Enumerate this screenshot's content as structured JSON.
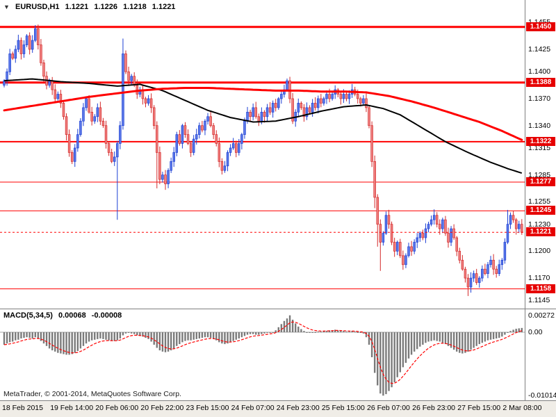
{
  "header": {
    "symbol": "EURUSD,H1",
    "open": "1.1221",
    "high": "1.1226",
    "low": "1.1218",
    "close": "1.1221"
  },
  "icons": {
    "symbol_marker": "▼"
  },
  "macd_label": {
    "name": "MACD(5,34,5)",
    "main": "0.00068",
    "signal": "-0.00008"
  },
  "footer": {
    "copyright": "MetaTrader, © 2001-2014, MetaQuotes Software Corp."
  },
  "colors": {
    "level_line": "#ff0000",
    "candle_up_border": "#1c3fd4",
    "candle_up_fill": "#5a77e8",
    "candle_down_border": "#d42a2a",
    "candle_down_fill": "#ef8080",
    "ma_black": "#000000",
    "ma_red": "#ff0000",
    "macd_bar": "#7a7a7a",
    "macd_signal": "#ff0000",
    "badge_bg": "#e60000"
  },
  "chart_data": [
    {
      "type": "candlestick",
      "title": "EURUSD,H1",
      "xlabel": "",
      "ylabel": "Price",
      "ylim": [
        1.1136,
        1.148
      ],
      "grid": false,
      "current_price": 1.1221,
      "first_open": 1.1385,
      "wick": 0.0005,
      "closes": [
        1.139,
        1.14,
        1.142,
        1.1415,
        1.1425,
        1.1435,
        1.142,
        1.143,
        1.144,
        1.1425,
        1.1435,
        1.1448,
        1.143,
        1.141,
        1.1395,
        1.1385,
        1.139,
        1.138,
        1.137,
        1.1375,
        1.1365,
        1.135,
        1.133,
        1.131,
        1.13,
        1.1315,
        1.133,
        1.1345,
        1.136,
        1.137,
        1.1355,
        1.1345,
        1.135,
        1.136,
        1.1345,
        1.134,
        1.132,
        1.131,
        1.13,
        1.1305,
        1.132,
        1.134,
        1.142,
        1.14,
        1.139,
        1.1395,
        1.1385,
        1.1375,
        1.138,
        1.137,
        1.1365,
        1.137,
        1.136,
        1.134,
        1.131,
        1.128,
        1.1285,
        1.1275,
        1.129,
        1.13,
        1.131,
        1.133,
        1.132,
        1.134,
        1.133,
        1.132,
        1.131,
        1.1325,
        1.133,
        1.134,
        1.1335,
        1.1345,
        1.135,
        1.134,
        1.133,
        1.132,
        1.13,
        1.129,
        1.1295,
        1.131,
        1.1315,
        1.132,
        1.131,
        1.132,
        1.133,
        1.1345,
        1.1355,
        1.135,
        1.136,
        1.135,
        1.1345,
        1.1355,
        1.135,
        1.136,
        1.1355,
        1.1365,
        1.136,
        1.137,
        1.1375,
        1.138,
        1.139,
        1.137,
        1.1345,
        1.1355,
        1.1365,
        1.136,
        1.135,
        1.136,
        1.1355,
        1.1365,
        1.136,
        1.137,
        1.1365,
        1.137,
        1.1375,
        1.137,
        1.1375,
        1.138,
        1.1375,
        1.137,
        1.1375,
        1.137,
        1.1375,
        1.138,
        1.1375,
        1.137,
        1.1365,
        1.137,
        1.136,
        1.134,
        1.13,
        1.126,
        1.123,
        1.121,
        1.122,
        1.124,
        1.123,
        1.121,
        1.12,
        1.121,
        1.1195,
        1.1185,
        1.1195,
        1.1205,
        1.12,
        1.121,
        1.1215,
        1.122,
        1.1215,
        1.1225,
        1.123,
        1.1235,
        1.124,
        1.123,
        1.1225,
        1.1235,
        1.122,
        1.121,
        1.1225,
        1.1215,
        1.12,
        1.119,
        1.118,
        1.117,
        1.116,
        1.117,
        1.1175,
        1.1165,
        1.117,
        1.118,
        1.1175,
        1.1185,
        1.119,
        1.118,
        1.1175,
        1.1185,
        1.119,
        1.121,
        1.123,
        1.124,
        1.1235,
        1.1225,
        1.123,
        1.1221
      ],
      "wick_overrides": {
        "11": {
          "h": 1.1452
        },
        "40": {
          "l": 1.1235
        },
        "42": {
          "h": 1.1437
        },
        "54": {
          "l": 1.127
        },
        "131": {
          "l": 1.1248
        },
        "132": {
          "l": 1.1205
        },
        "133": {
          "l": 1.1178
        },
        "164": {
          "l": 1.115
        },
        "178": {
          "h": 1.1246
        }
      },
      "y_ticks": [
        1.1455,
        1.1425,
        1.14,
        1.137,
        1.134,
        1.1315,
        1.1285,
        1.1255,
        1.123,
        1.12,
        1.117,
        1.1145
      ],
      "levels": [
        {
          "price": 1.145,
          "width": 3
        },
        {
          "price": 1.1388,
          "width": 3
        },
        {
          "price": 1.1322,
          "width": 2
        },
        {
          "price": 1.1277,
          "width": 1
        },
        {
          "price": 1.1245,
          "width": 1
        },
        {
          "price": 1.1158,
          "width": 1
        }
      ],
      "ma_black": [
        [
          0,
          1.139
        ],
        [
          10,
          1.1392
        ],
        [
          20,
          1.1389
        ],
        [
          30,
          1.1387
        ],
        [
          40,
          1.1384
        ],
        [
          48,
          1.1386
        ],
        [
          56,
          1.1379
        ],
        [
          64,
          1.1368
        ],
        [
          72,
          1.1357
        ],
        [
          80,
          1.1349
        ],
        [
          88,
          1.1344
        ],
        [
          96,
          1.1345
        ],
        [
          104,
          1.135
        ],
        [
          112,
          1.1356
        ],
        [
          120,
          1.1361
        ],
        [
          128,
          1.1363
        ],
        [
          134,
          1.1359
        ],
        [
          140,
          1.1352
        ],
        [
          148,
          1.1337
        ],
        [
          156,
          1.1322
        ],
        [
          164,
          1.131
        ],
        [
          172,
          1.1299
        ],
        [
          178,
          1.1292
        ],
        [
          183,
          1.1287
        ]
      ],
      "ma_red": [
        [
          0,
          1.1357
        ],
        [
          10,
          1.1362
        ],
        [
          20,
          1.1367
        ],
        [
          30,
          1.1372
        ],
        [
          40,
          1.1376
        ],
        [
          48,
          1.1379
        ],
        [
          56,
          1.1381
        ],
        [
          64,
          1.1382
        ],
        [
          72,
          1.1382
        ],
        [
          80,
          1.1381
        ],
        [
          88,
          1.138
        ],
        [
          96,
          1.1379
        ],
        [
          104,
          1.1379
        ],
        [
          112,
          1.1378
        ],
        [
          120,
          1.1378
        ],
        [
          128,
          1.1377
        ],
        [
          136,
          1.1373
        ],
        [
          144,
          1.1367
        ],
        [
          152,
          1.136
        ],
        [
          160,
          1.1352
        ],
        [
          168,
          1.1344
        ],
        [
          176,
          1.1334
        ],
        [
          183,
          1.1324
        ]
      ],
      "x_labels": [
        {
          "i": 0,
          "label": "18 Feb 2015"
        },
        {
          "i": 17,
          "label": "19 Feb 14:00"
        },
        {
          "i": 33,
          "label": "20 Feb 06:00"
        },
        {
          "i": 49,
          "label": "20 Feb 22:00"
        },
        {
          "i": 65,
          "label": "23 Feb 15:00"
        },
        {
          "i": 81,
          "label": "24 Feb 07:00"
        },
        {
          "i": 97,
          "label": "24 Feb 23:00"
        },
        {
          "i": 113,
          "label": "25 Feb 15:00"
        },
        {
          "i": 129,
          "label": "26 Feb 07:00"
        },
        {
          "i": 145,
          "label": "26 Feb 23:00"
        },
        {
          "i": 161,
          "label": "27 Feb 15:00"
        },
        {
          "i": 177,
          "label": "2 Mar 08:00"
        }
      ]
    },
    {
      "type": "bar",
      "title": "MACD(5,34,5)",
      "ylim": [
        -0.0115,
        0.0038
      ],
      "signal_alpha": 0.25,
      "values": [
        -0.002,
        -0.0018,
        -0.0016,
        -0.0015,
        -0.0013,
        -0.0012,
        -0.001,
        -0.0009,
        -0.0008,
        -0.0009,
        -0.001,
        -0.0008,
        -0.001,
        -0.0014,
        -0.0018,
        -0.0022,
        -0.0026,
        -0.0029,
        -0.0031,
        -0.0033,
        -0.0034,
        -0.0035,
        -0.0036,
        -0.0036,
        -0.0035,
        -0.0033,
        -0.003,
        -0.0026,
        -0.0022,
        -0.0018,
        -0.0015,
        -0.0013,
        -0.0012,
        -0.0011,
        -0.001,
        -0.0011,
        -0.0012,
        -0.0013,
        -0.0014,
        -0.0014,
        -0.0013,
        -0.001,
        -0.0005,
        -0.0002,
        -0.0001,
        -0.0002,
        -0.0003,
        -0.0005,
        -0.0006,
        -0.0007,
        -0.0009,
        -0.0011,
        -0.0015,
        -0.002,
        -0.0025,
        -0.0029,
        -0.0031,
        -0.0032,
        -0.0031,
        -0.0029,
        -0.0026,
        -0.0022,
        -0.0019,
        -0.0016,
        -0.0014,
        -0.0013,
        -0.0013,
        -0.0012,
        -0.0011,
        -0.001,
        -0.0009,
        -0.0008,
        -0.0008,
        -0.0009,
        -0.0011,
        -0.0013,
        -0.0016,
        -0.0018,
        -0.0019,
        -0.0018,
        -0.0016,
        -0.0014,
        -0.0012,
        -0.001,
        -0.0008,
        -0.0006,
        -0.0004,
        -0.0003,
        -0.0003,
        -0.0004,
        -0.0004,
        -0.0003,
        -0.0002,
        -0.0001,
        -0.0001,
        0.0,
        0.0003,
        0.0008,
        0.0013,
        0.0018,
        0.0022,
        0.0027,
        0.002,
        0.0014,
        0.0009,
        0.0005,
        0.0002,
        0.0,
        -0.0001,
        -0.0001,
        0.0,
        0.0001,
        0.0001,
        0.0002,
        0.0002,
        0.0003,
        0.0003,
        0.0004,
        0.0003,
        0.0002,
        0.0002,
        0.0001,
        0.0001,
        0.0002,
        0.0001,
        0.0,
        -0.0001,
        -0.0002,
        -0.0008,
        -0.002,
        -0.004,
        -0.0065,
        -0.0085,
        -0.0098,
        -0.01014,
        -0.0099,
        -0.0094,
        -0.0088,
        -0.008,
        -0.0072,
        -0.0064,
        -0.0056,
        -0.0049,
        -0.0042,
        -0.0036,
        -0.0031,
        -0.0027,
        -0.0023,
        -0.002,
        -0.0017,
        -0.0015,
        -0.0014,
        -0.0013,
        -0.0014,
        -0.0015,
        -0.0017,
        -0.0019,
        -0.0022,
        -0.0025,
        -0.0028,
        -0.0031,
        -0.0033,
        -0.0034,
        -0.0033,
        -0.0031,
        -0.0028,
        -0.0025,
        -0.0022,
        -0.0019,
        -0.0017,
        -0.0015,
        -0.0013,
        -0.0012,
        -0.0011,
        -0.001,
        -0.0009,
        -0.0007,
        -0.0004,
        -0.0001,
        0.0002,
        0.0004,
        0.00055,
        0.00062,
        0.00068
      ],
      "y_ticks": [
        {
          "v": 0.00272,
          "label": "0.00272"
        },
        {
          "v": 0.0,
          "label": "0.00"
        },
        {
          "v": -0.01014,
          "label": "-0.01014"
        }
      ]
    }
  ]
}
